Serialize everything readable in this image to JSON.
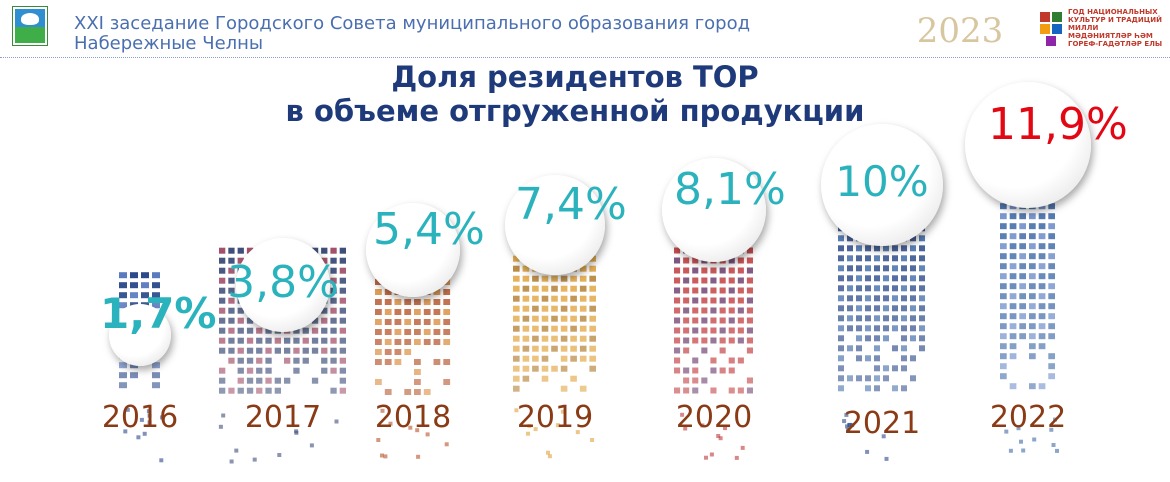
{
  "header": {
    "text": "XXI заседание Городского Совета муниципального образования город Набережные Челны",
    "logo_2023": "2023",
    "logo_year": "2023",
    "logo_text": "ГОД НАЦИОНАЛЬНЫХ КУЛЬТУР И ТРАДИЦИЙ МИЛЛИ МӘДӘНИЯТЛӘР ҺӘМ ГОРЕФ-ГАДӘТЛӘР ЕЛЫ"
  },
  "title_line1": "Доля резидентов ТОР",
  "title_line2": "в объеме отгруженной продукции",
  "colors": {
    "teal": "#2bb3bd",
    "red": "#e30613",
    "year": "#8a3b15",
    "title": "#1f3a7a"
  },
  "chart_data": {
    "type": "bar",
    "categories": [
      "2016",
      "2017",
      "2018",
      "2019",
      "2020",
      "2021",
      "2022"
    ],
    "values": [
      1.7,
      3.8,
      5.4,
      7.4,
      8.1,
      10,
      11.9
    ],
    "value_labels": [
      "1,7%",
      "3,8%",
      "5,4%",
      "7,4%",
      "8,1%",
      "10%",
      "11,9%"
    ],
    "unit": "%",
    "title": "Доля резидентов ТОР в объеме отгруженной продукции"
  }
}
